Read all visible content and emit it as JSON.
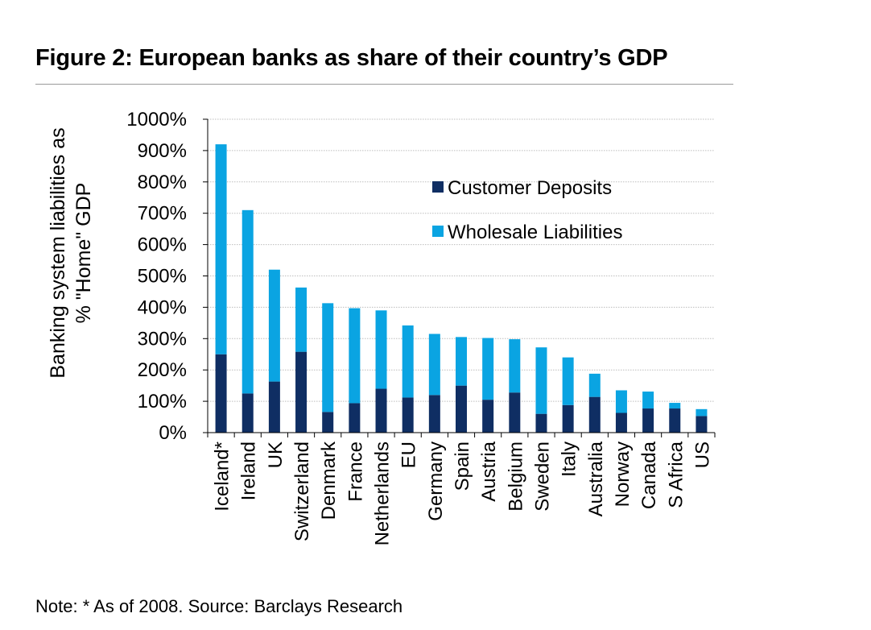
{
  "header": {
    "title": "Figure 2: European banks as share of their country’s GDP"
  },
  "footer": {
    "note": "Note: * As of 2008. Source: Barclays Research"
  },
  "colors": {
    "customer_deposits": "#0f2e63",
    "wholesale_liabilities": "#0aa4e2",
    "gridline": "#bdbdbd",
    "axis": "#000000"
  },
  "chart_data": {
    "type": "bar",
    "stacked": true,
    "title": "Figure 2: European banks as share of their country’s GDP",
    "ylabel": "Banking system liabilities as % \"Home\" GDP",
    "ylabel_lines": [
      "Banking system liabilities as",
      "% \"Home\" GDP"
    ],
    "xlabel": "",
    "ylim": [
      0,
      1000
    ],
    "yticks": [
      0,
      100,
      200,
      300,
      400,
      500,
      600,
      700,
      800,
      900,
      1000
    ],
    "ytick_labels": [
      "0%",
      "100%",
      "200%",
      "300%",
      "400%",
      "500%",
      "600%",
      "700%",
      "800%",
      "900%",
      "1000%"
    ],
    "grid": true,
    "legend_position": "upper-center",
    "categories": [
      "Iceland*",
      "Ireland",
      "UK",
      "Switzerland",
      "Denmark",
      "France",
      "Netherlands",
      "EU",
      "Germany",
      "Spain",
      "Austria",
      "Belgium",
      "Sweden",
      "Italy",
      "Australia",
      "Norway",
      "Canada",
      "S Africa",
      "US"
    ],
    "series": [
      {
        "name": "Customer Deposits",
        "values": [
          250,
          125,
          163,
          258,
          66,
          94,
          140,
          112,
          120,
          150,
          105,
          128,
          60,
          88,
          114,
          63,
          77,
          77,
          53
        ]
      },
      {
        "name": "Wholesale Liabilities",
        "values": [
          670,
          585,
          357,
          205,
          347,
          303,
          250,
          230,
          195,
          155,
          197,
          170,
          212,
          152,
          74,
          72,
          54,
          18,
          22
        ]
      }
    ],
    "totals": [
      920,
      710,
      520,
      463,
      413,
      397,
      390,
      342,
      315,
      305,
      302,
      298,
      272,
      240,
      188,
      135,
      131,
      95,
      75
    ]
  }
}
